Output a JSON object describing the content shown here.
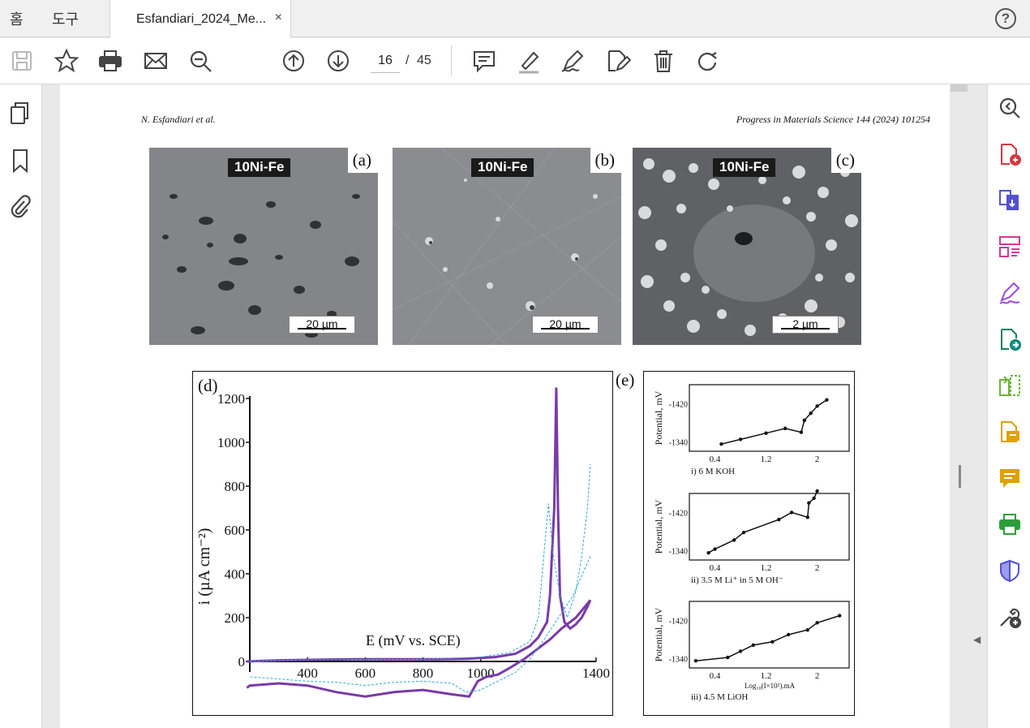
{
  "tabs": {
    "home": "홈",
    "tools": "도구",
    "document": "Esfandiari_2024_Me...",
    "close": "×",
    "help": "?"
  },
  "toolbar": {
    "icons": [
      "save-icon",
      "star-icon",
      "print-icon",
      "email-icon",
      "zoom-search-icon",
      "page-up-icon",
      "page-down-icon",
      "comment-icon",
      "highlight-icon",
      "sign-icon",
      "edit-icon",
      "delete-icon",
      "redo-icon"
    ],
    "current_page": "16",
    "page_separator": "/",
    "total_pages": "45"
  },
  "left_rail": {
    "icons": [
      "pages-icon",
      "bookmark-icon",
      "attachment-icon"
    ]
  },
  "right_rail": {
    "icons": [
      "zoom-icon",
      "create-pdf-icon",
      "combine-icon",
      "organize-icon",
      "fill-sign-icon",
      "export-icon",
      "compress-icon",
      "comment-icon",
      "sticky-note-icon",
      "print-production-icon",
      "protect-icon",
      "more-tools-icon"
    ]
  },
  "page": {
    "header_left": "N. Esfandiari et al.",
    "header_right": "Progress in Materials Science 144 (2024) 101254",
    "images": [
      {
        "badge": "10Ni-Fe",
        "label": "(a)",
        "scale": "20 µm"
      },
      {
        "badge": "10Ni-Fe",
        "label": "(b)",
        "scale": "20 µm"
      },
      {
        "badge": "10Ni-Fe",
        "label": "(c)",
        "scale": "2 µm"
      }
    ],
    "figure_e_label": "(e)"
  },
  "chart_data": [
    {
      "type": "line",
      "panel": "(d)",
      "xlabel": "E (mV vs. SCE)",
      "ylabel": "i (µA cm⁻²)",
      "xlim": [
        200,
        1400
      ],
      "ylim": [
        -150,
        1250
      ],
      "xticks": [
        "400",
        "600",
        "800",
        "1000",
        "1400"
      ],
      "yticks": [
        "0",
        "200",
        "400",
        "600",
        "800",
        "1000",
        "1200"
      ],
      "series": [
        {
          "style": "solid-purple",
          "x": [
            190,
            300,
            450,
            560,
            650,
            750,
            850,
            950,
            1050,
            1120,
            1170,
            1200,
            1230,
            1240,
            1255,
            1262,
            1268,
            1275,
            1290,
            1310,
            1330,
            1350,
            1370,
            1380
          ],
          "y": [
            0,
            5,
            8,
            10,
            10,
            10,
            10,
            12,
            20,
            35,
            70,
            110,
            180,
            300,
            700,
            1250,
            700,
            300,
            180,
            150,
            170,
            200,
            250,
            280
          ]
        },
        {
          "style": "solid-purple-return",
          "x": [
            1380,
            1330,
            1280,
            1240,
            1200,
            1150,
            1100,
            1060,
            1020,
            990,
            960,
            900,
            800,
            700,
            600,
            500,
            400,
            300,
            200,
            190
          ],
          "y": [
            280,
            200,
            150,
            100,
            60,
            10,
            -30,
            -60,
            -70,
            -90,
            -160,
            -150,
            -130,
            -140,
            -160,
            -140,
            -110,
            -100,
            -110,
            -120
          ]
        },
        {
          "style": "dashed-cyan",
          "x": [
            200,
            400,
            600,
            800,
            1000,
            1100,
            1170,
            1200,
            1220,
            1235,
            1250,
            1275,
            1300,
            1330,
            1350,
            1370,
            1380
          ],
          "y": [
            0,
            8,
            8,
            10,
            20,
            40,
            90,
            200,
            500,
            720,
            500,
            300,
            200,
            320,
            480,
            700,
            900
          ]
        },
        {
          "style": "dashed-cyan-return",
          "x": [
            1380,
            1320,
            1270,
            1220,
            1170,
            1120,
            1060,
            1000,
            950,
            900,
            800,
            700,
            600,
            500,
            400,
            300,
            200
          ],
          "y": [
            480,
            300,
            200,
            100,
            10,
            -50,
            -90,
            -130,
            -140,
            -100,
            -90,
            -95,
            -110,
            -95,
            -90,
            -80,
            -70
          ]
        }
      ]
    },
    {
      "type": "scatter",
      "panel": "(e) i",
      "caption": "i)  6 M KOH",
      "ylabel": "Potential, mV",
      "xticks": [
        "0.4",
        "1.2",
        "2"
      ],
      "yticks": [
        "-1420",
        "-1340"
      ],
      "x": [
        0.5,
        0.8,
        1.2,
        1.5,
        1.75,
        1.8,
        1.9,
        2.0,
        2.15
      ],
      "y": [
        -1335,
        -1345,
        -1358,
        -1368,
        -1360,
        -1385,
        -1400,
        -1415,
        -1428
      ]
    },
    {
      "type": "scatter",
      "panel": "(e) ii",
      "caption": "ii)  3.5 M Li⁺  in  5 M OH⁻",
      "ylabel": "Potential, mV",
      "xticks": [
        "0.4",
        "1.2",
        "2"
      ],
      "yticks": [
        "-1420",
        "-1340"
      ],
      "x": [
        0.3,
        0.4,
        0.7,
        0.85,
        1.4,
        1.6,
        1.85,
        1.87,
        1.95,
        2.0
      ],
      "y": [
        -1335,
        -1343,
        -1362,
        -1378,
        -1405,
        -1420,
        -1410,
        -1440,
        -1450,
        -1465
      ]
    },
    {
      "type": "scatter",
      "panel": "(e) iii",
      "caption": "iii)  4.5 M LiOH",
      "ylabel": "Potential, mV",
      "xlabel": "Log₁₀(I×10²).mA",
      "xticks": [
        "0.4",
        "1.2",
        "2"
      ],
      "yticks": [
        "-1420",
        "-1340"
      ],
      "x": [
        0.1,
        0.6,
        0.8,
        1.0,
        1.3,
        1.55,
        1.85,
        2.0,
        2.35
      ],
      "y": [
        -1335,
        -1342,
        -1355,
        -1368,
        -1375,
        -1390,
        -1400,
        -1415,
        -1430
      ]
    }
  ]
}
